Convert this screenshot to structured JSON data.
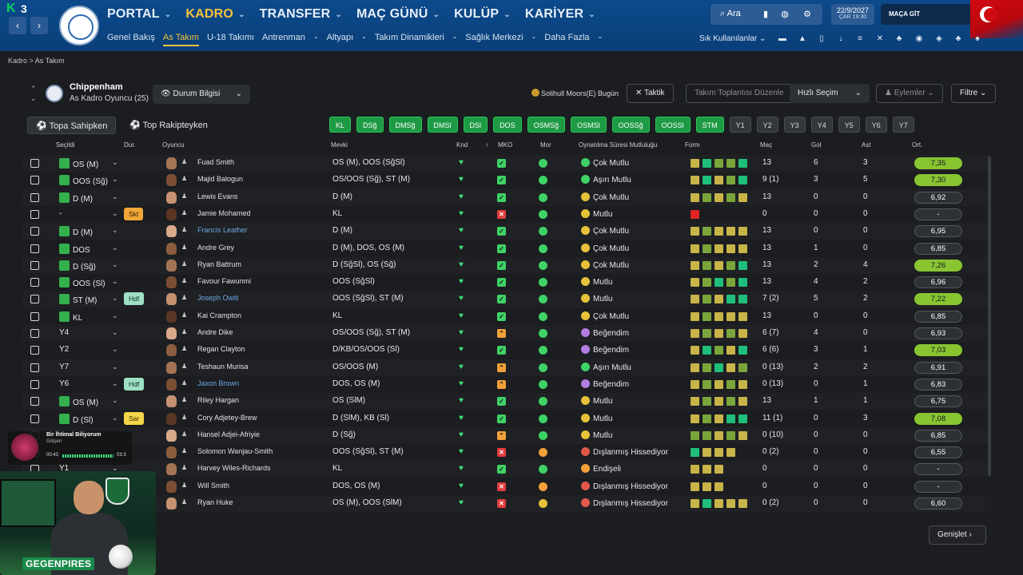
{
  "header": {
    "logo_k": "K",
    "logo_num": "3",
    "nav": [
      {
        "label": "PORTAL",
        "active": false
      },
      {
        "label": "KADRO",
        "active": true
      },
      {
        "label": "TRANSFER",
        "active": false
      },
      {
        "label": "MAÇ GÜNÜ",
        "active": false
      },
      {
        "label": "KULÜP",
        "active": false
      },
      {
        "label": "KARİYER",
        "active": false
      }
    ],
    "subnav": [
      {
        "label": "Genel Bakış",
        "active": false
      },
      {
        "label": "As Takım",
        "active": true
      },
      {
        "label": "U-18 Takımı",
        "active": false
      },
      {
        "label": "Antrenman",
        "active": false
      },
      {
        "label": "Altyapı",
        "active": false
      },
      {
        "label": "Takım Dinamikleri",
        "active": false
      },
      {
        "label": "Sağlık Merkezi",
        "active": false
      },
      {
        "label": "Daha Fazla",
        "active": false
      }
    ],
    "search_label": "Ara",
    "date": "22/9/2027",
    "day_time": "ÇAR  19:30",
    "continue_label": "MAÇA GİT",
    "quick_links": "Sık Kullanılanlar",
    "accent": "#f6c23b",
    "bar_color": "#0c4a8c"
  },
  "breadcrumb": "Kadro > As Takım",
  "team": {
    "name": "Chippenham",
    "subtitle": "As Kadro Oyuncu (25)",
    "view_select": "Durum Bilgisi",
    "next_match": "Solihull Moors(E) Bugün",
    "tactic_label": "Taktik",
    "meeting_label": "Takım Toplantısı Düzenle",
    "quick_select": "Hızlı Seçim",
    "actions": "Eylemler",
    "filter": "Filtre"
  },
  "tabs": [
    {
      "label": "Topa Sahipken",
      "active": true
    },
    {
      "label": "Top Rakipteyken",
      "active": false
    }
  ],
  "position_filters": [
    {
      "label": "KL",
      "on": true
    },
    {
      "label": "DSğ",
      "on": true
    },
    {
      "label": "DMSğ",
      "on": true
    },
    {
      "label": "DMSl",
      "on": true
    },
    {
      "label": "DSl",
      "on": true
    },
    {
      "label": "DOS",
      "on": true
    },
    {
      "label": "OSMSğ",
      "on": true
    },
    {
      "label": "OSMSl",
      "on": true
    },
    {
      "label": "OOSSğ",
      "on": true
    },
    {
      "label": "OOSSl",
      "on": true
    },
    {
      "label": "STM",
      "on": true
    },
    {
      "label": "Y1",
      "on": false
    },
    {
      "label": "Y2",
      "on": false
    },
    {
      "label": "Y3",
      "on": false
    },
    {
      "label": "Y4",
      "on": false
    },
    {
      "label": "Y5",
      "on": false
    },
    {
      "label": "Y6",
      "on": false
    },
    {
      "label": "Y7",
      "on": false
    }
  ],
  "columns": {
    "selected": "Seçildi",
    "status": "Dur.",
    "player": "Oyuncu",
    "position": "Mevki",
    "fitness": "Knd",
    "sort": "↑",
    "mko": "MKO",
    "morale": "Mor",
    "playtime": "Oynatılma Süresi Mutluluğu",
    "form": "Form",
    "apps": "Maç",
    "goals": "Gol",
    "assists": "Ast",
    "rating": "Ort."
  },
  "players": [
    {
      "sel": "OS (M)",
      "sq": true,
      "badge": "",
      "name": "Fuad Smith",
      "link": false,
      "pos": "OS (M), OOS (SğSl)",
      "mko": "g",
      "mor": "g",
      "happy": "Çok Mutlu",
      "hc": "g",
      "form": [
        "y",
        "t",
        "g",
        "g",
        "t"
      ],
      "apps": "13",
      "goals": "6",
      "ast": "3",
      "ort": "7,35",
      "oc": "b"
    },
    {
      "sel": "OOS (Sğ)",
      "sq": true,
      "badge": "",
      "name": "Majid Balogun",
      "link": false,
      "pos": "OS/OOS (Sğ), ST (M)",
      "mko": "g",
      "mor": "g",
      "happy": "Aşırı Mutlu",
      "hc": "g",
      "form": [
        "y",
        "t",
        "y",
        "g",
        "t"
      ],
      "apps": "9 (1)",
      "goals": "3",
      "ast": "5",
      "ort": "7,30",
      "oc": "b"
    },
    {
      "sel": "D (M)",
      "sq": true,
      "badge": "",
      "name": "Lewis Evans",
      "link": false,
      "pos": "D (M)",
      "mko": "g",
      "mor": "g",
      "happy": "Çok Mutlu",
      "hc": "y",
      "form": [
        "y",
        "g",
        "y",
        "g",
        "y"
      ],
      "apps": "13",
      "goals": "0",
      "ast": "0",
      "ort": "6,92",
      "oc": "n"
    },
    {
      "sel": "-",
      "sq": false,
      "badge": "Skt",
      "bc": "skt",
      "name": "Jamie Mohamed",
      "link": false,
      "pos": "KL",
      "mko": "r",
      "mor": "g",
      "happy": "Mutlu",
      "hc": "y",
      "form": [
        "r"
      ],
      "apps": "0",
      "goals": "0",
      "ast": "0",
      "ort": "-",
      "oc": "d"
    },
    {
      "sel": "D (M)",
      "sq": true,
      "badge": "",
      "name": "Francis Leather",
      "link": true,
      "pos": "D (M)",
      "mko": "g",
      "mor": "g",
      "happy": "Çok Mutlu",
      "hc": "y",
      "form": [
        "y",
        "g",
        "y",
        "y",
        "y"
      ],
      "apps": "13",
      "goals": "0",
      "ast": "0",
      "ort": "6,95",
      "oc": "n"
    },
    {
      "sel": "DOS",
      "sq": true,
      "badge": "",
      "name": "Andre Grey",
      "link": false,
      "pos": "D (M), DOS, OS (M)",
      "mko": "g",
      "mor": "g",
      "happy": "Çok Mutlu",
      "hc": "y",
      "form": [
        "y",
        "g",
        "y",
        "y",
        "y"
      ],
      "apps": "13",
      "goals": "1",
      "ast": "0",
      "ort": "6,85",
      "oc": "n"
    },
    {
      "sel": "D (Sğ)",
      "sq": true,
      "badge": "",
      "name": "Ryan Battrum",
      "link": false,
      "pos": "D (SğSl), OS (Sğ)",
      "mko": "g",
      "mor": "g",
      "happy": "Çok Mutlu",
      "hc": "y",
      "form": [
        "y",
        "g",
        "y",
        "g",
        "t"
      ],
      "apps": "13",
      "goals": "2",
      "ast": "4",
      "ort": "7,26",
      "oc": "b"
    },
    {
      "sel": "OOS (Sl)",
      "sq": true,
      "badge": "",
      "name": "Favour Fawunmi",
      "link": false,
      "pos": "OOS (SğSl)",
      "mko": "g",
      "mor": "g",
      "happy": "Mutlu",
      "hc": "y",
      "form": [
        "y",
        "g",
        "t",
        "g",
        "t"
      ],
      "apps": "13",
      "goals": "4",
      "ast": "2",
      "ort": "6,96",
      "oc": "n"
    },
    {
      "sel": "ST (M)",
      "sq": true,
      "badge": "Hdf",
      "bc": "hdf",
      "name": "Joseph Owiti",
      "link": true,
      "pos": "OOS (SğSl), ST (M)",
      "mko": "g",
      "mor": "g",
      "happy": "Mutlu",
      "hc": "y",
      "form": [
        "y",
        "g",
        "y",
        "t",
        "t"
      ],
      "apps": "7 (2)",
      "goals": "5",
      "ast": "2",
      "ort": "7,22",
      "oc": "b"
    },
    {
      "sel": "KL",
      "sq": true,
      "badge": "",
      "name": "Kai Crampton",
      "link": false,
      "pos": "KL",
      "mko": "g",
      "mor": "g",
      "happy": "Çok Mutlu",
      "hc": "y",
      "form": [
        "y",
        "g",
        "y",
        "y",
        "y"
      ],
      "apps": "13",
      "goals": "0",
      "ast": "0",
      "ort": "6,85",
      "oc": "n"
    },
    {
      "sel": "Y4",
      "sq": false,
      "badge": "",
      "name": "Andre Dike",
      "link": false,
      "pos": "OS/OOS (Sğ), ST (M)",
      "mko": "o",
      "mor": "g",
      "happy": "Beğendim",
      "hc": "p",
      "form": [
        "y",
        "g",
        "y",
        "g",
        "y"
      ],
      "apps": "6 (7)",
      "goals": "4",
      "ast": "0",
      "ort": "6,93",
      "oc": "n"
    },
    {
      "sel": "Y2",
      "sq": false,
      "badge": "",
      "name": "Regan Clayton",
      "link": false,
      "pos": "D/KB/OS/OOS (Sl)",
      "mko": "g",
      "mor": "g",
      "happy": "Beğendim",
      "hc": "p",
      "form": [
        "y",
        "t",
        "g",
        "y",
        "t"
      ],
      "apps": "6 (6)",
      "goals": "3",
      "ast": "1",
      "ort": "7,03",
      "oc": "b"
    },
    {
      "sel": "Y7",
      "sq": false,
      "badge": "",
      "name": "Teshaun Murisa",
      "link": false,
      "pos": "OS/OOS (M)",
      "mko": "o",
      "mor": "g",
      "happy": "Aşırı Mutlu",
      "hc": "g",
      "form": [
        "y",
        "g",
        "t",
        "y",
        "g"
      ],
      "apps": "0 (13)",
      "goals": "2",
      "ast": "2",
      "ort": "6,91",
      "oc": "n"
    },
    {
      "sel": "Y6",
      "sq": false,
      "badge": "Hdf",
      "bc": "hdf",
      "name": "Jaxon Brown",
      "link": true,
      "pos": "DOS, OS (M)",
      "mko": "o",
      "mor": "g",
      "happy": "Beğendim",
      "hc": "p",
      "form": [
        "y",
        "g",
        "y",
        "g",
        "y"
      ],
      "apps": "0 (13)",
      "goals": "0",
      "ast": "1",
      "ort": "6,83",
      "oc": "n"
    },
    {
      "sel": "OS (M)",
      "sq": true,
      "badge": "",
      "name": "Riley Hargan",
      "link": false,
      "pos": "OS (SlM)",
      "mko": "g",
      "mor": "g",
      "happy": "Mutlu",
      "hc": "y",
      "form": [
        "y",
        "g",
        "y",
        "g",
        "y"
      ],
      "apps": "13",
      "goals": "1",
      "ast": "1",
      "ort": "6,75",
      "oc": "n"
    },
    {
      "sel": "D (Sl)",
      "sq": true,
      "badge": "Sar",
      "bc": "sar",
      "name": "Cory Adjetey-Brew",
      "link": false,
      "pos": "D (SlM), KB (Sl)",
      "mko": "g",
      "mor": "g",
      "happy": "Mutlu",
      "hc": "y",
      "form": [
        "y",
        "g",
        "y",
        "t",
        "t"
      ],
      "apps": "11 (1)",
      "goals": "0",
      "ast": "3",
      "ort": "7,08",
      "oc": "b"
    },
    {
      "sel": "",
      "sq": false,
      "badge": "",
      "name": "Hansel Adjei-Afriyie",
      "link": false,
      "pos": "D (Sğ)",
      "mko": "o",
      "mor": "g",
      "happy": "Mutlu",
      "hc": "y",
      "form": [
        "g",
        "g",
        "y",
        "g",
        "y"
      ],
      "apps": "0 (10)",
      "goals": "0",
      "ast": "0",
      "ort": "6,85",
      "oc": "n"
    },
    {
      "sel": "",
      "sq": false,
      "badge": "",
      "name": "Solomon Wanjau-Smith",
      "link": false,
      "pos": "OOS (SğSl), ST (M)",
      "mko": "r",
      "mor": "o",
      "happy": "Dışlanmış Hissediyor",
      "hc": "r",
      "form": [
        "t",
        "y",
        "y",
        "y"
      ],
      "apps": "0 (2)",
      "goals": "0",
      "ast": "0",
      "ort": "6,55",
      "oc": "n"
    },
    {
      "sel": "Y1",
      "sq": false,
      "badge": "",
      "name": "Harvey Wiles-Richards",
      "link": false,
      "pos": "KL",
      "mko": "g",
      "mor": "g",
      "happy": "Endişeli",
      "hc": "o",
      "form": [
        "y",
        "y",
        "y"
      ],
      "apps": "0",
      "goals": "0",
      "ast": "0",
      "ort": "-",
      "oc": "d"
    },
    {
      "sel": "",
      "sq": false,
      "badge": "",
      "name": "Will Smith",
      "link": false,
      "pos": "DOS, OS (M)",
      "mko": "r",
      "mor": "o",
      "happy": "Dışlanmış Hissediyor",
      "hc": "r",
      "form": [
        "y",
        "y",
        "y"
      ],
      "apps": "0",
      "goals": "0",
      "ast": "0",
      "ort": "-",
      "oc": "d"
    },
    {
      "sel": "",
      "sq": false,
      "badge": "",
      "name": "Ryan Huke",
      "link": false,
      "pos": "OS (M), OOS (SlM)",
      "mko": "r",
      "mor": "y",
      "happy": "Dışlanmış Hissediyor",
      "hc": "r",
      "form": [
        "y",
        "t",
        "y",
        "y",
        "y"
      ],
      "apps": "0 (2)",
      "goals": "0",
      "ast": "0",
      "ort": "6,60",
      "oc": "n"
    }
  ],
  "expand_label": "Genişlet",
  "overlay": {
    "song_title": "Bir İhtimal Biliyorum",
    "song_artist": "Gülşen",
    "time_start": "00:43",
    "time_end": "03:3",
    "brand": "GEGENPIRES"
  }
}
